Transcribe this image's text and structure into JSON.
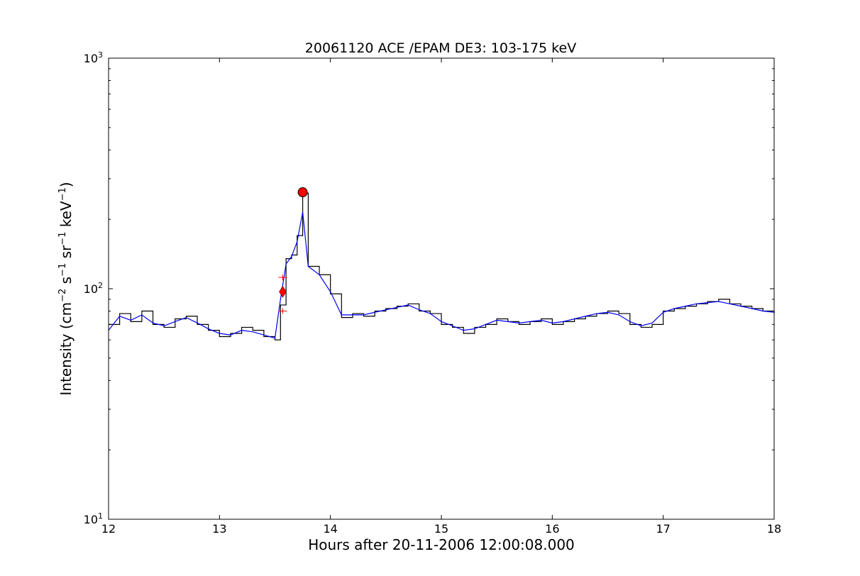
{
  "chart_data": {
    "type": "line",
    "title": "20061120 ACE /EPAM DE3: 103-175 keV",
    "xlabel": "Hours after 20-11-2006 12:00:08.000",
    "ylabel": "Intensity (cm^-2 s^-1 sr^-1 keV^-1)",
    "ylabel_parts": [
      "Intensity (cm",
      "−2",
      " s",
      "−1",
      " sr",
      "−1",
      " keV",
      "−1",
      ")"
    ],
    "xlim": [
      12,
      18
    ],
    "ylim": [
      10,
      1000
    ],
    "yscale": "log",
    "grid": false,
    "x_ticks": [
      12,
      13,
      14,
      15,
      16,
      17,
      18
    ],
    "x_tick_labels": [
      "12",
      "13",
      "14",
      "15",
      "16",
      "17",
      "18"
    ],
    "y_ticks": [
      10,
      100,
      1000
    ],
    "y_tick_labels": [
      {
        "base": "10",
        "exp": "1"
      },
      {
        "base": "10",
        "exp": "2"
      },
      {
        "base": "10",
        "exp": "3"
      }
    ],
    "series": [
      {
        "color": "#000000",
        "style": "steps",
        "x": [
          12.0,
          12.1,
          12.2,
          12.3,
          12.4,
          12.5,
          12.6,
          12.7,
          12.8,
          12.9,
          13.0,
          13.1,
          13.2,
          13.3,
          13.4,
          13.5,
          13.55,
          13.6,
          13.65,
          13.7,
          13.75,
          13.8,
          13.9,
          14.0,
          14.1,
          14.2,
          14.3,
          14.4,
          14.5,
          14.6,
          14.7,
          14.8,
          14.9,
          15.0,
          15.1,
          15.2,
          15.3,
          15.4,
          15.5,
          15.6,
          15.7,
          15.8,
          15.9,
          16.0,
          16.1,
          16.2,
          16.3,
          16.4,
          16.5,
          16.6,
          16.7,
          16.8,
          16.9,
          17.0,
          17.1,
          17.2,
          17.3,
          17.4,
          17.5,
          17.6,
          17.7,
          17.8,
          17.9,
          18.0
        ],
        "values": [
          70,
          78,
          72,
          80,
          70,
          68,
          74,
          76,
          70,
          66,
          62,
          64,
          68,
          66,
          62,
          60,
          85,
          135,
          140,
          170,
          260,
          125,
          115,
          95,
          75,
          78,
          76,
          80,
          82,
          84,
          86,
          80,
          78,
          70,
          68,
          64,
          68,
          70,
          74,
          72,
          70,
          72,
          74,
          70,
          72,
          74,
          76,
          78,
          80,
          78,
          70,
          68,
          70,
          80,
          82,
          84,
          86,
          88,
          90,
          86,
          84,
          82,
          80,
          78
        ]
      },
      {
        "color": "#0000ff",
        "style": "line",
        "x": [
          12.0,
          12.1,
          12.2,
          12.3,
          12.4,
          12.5,
          12.6,
          12.7,
          12.8,
          12.9,
          13.0,
          13.1,
          13.2,
          13.3,
          13.4,
          13.5,
          13.55,
          13.6,
          13.65,
          13.7,
          13.75,
          13.8,
          13.9,
          14.0,
          14.1,
          14.2,
          14.3,
          14.4,
          14.5,
          14.6,
          14.7,
          14.8,
          14.9,
          15.0,
          15.1,
          15.2,
          15.3,
          15.4,
          15.5,
          15.6,
          15.7,
          15.8,
          15.9,
          16.0,
          16.1,
          16.2,
          16.3,
          16.4,
          16.5,
          16.6,
          16.7,
          16.8,
          16.9,
          17.0,
          17.1,
          17.2,
          17.3,
          17.4,
          17.5,
          17.6,
          17.7,
          17.8,
          17.9,
          18.0
        ],
        "values": [
          66,
          76,
          73,
          77,
          71,
          69,
          72,
          75,
          71,
          67,
          64,
          63,
          66,
          65,
          63,
          61,
          90,
          128,
          138,
          160,
          215,
          125,
          115,
          97,
          77,
          77,
          77,
          79,
          81,
          83,
          85,
          81,
          78,
          72,
          69,
          66,
          67,
          70,
          73,
          72,
          71,
          72,
          73,
          71,
          72,
          74,
          76,
          78,
          79,
          77,
          72,
          69,
          71,
          79,
          82,
          84,
          86,
          87,
          88,
          86,
          84,
          82,
          80,
          79
        ]
      }
    ],
    "markers": [
      {
        "shape": "circle",
        "color": "#ff0000",
        "x": 13.75,
        "y": 262
      },
      {
        "shape": "diamond",
        "color": "#ff0000",
        "x": 13.57,
        "y": 97
      },
      {
        "shape": "plus",
        "color": "#ff0000",
        "x": 13.57,
        "y": 112
      },
      {
        "shape": "plus",
        "color": "#ff0000",
        "x": 13.57,
        "y": 80
      }
    ]
  }
}
